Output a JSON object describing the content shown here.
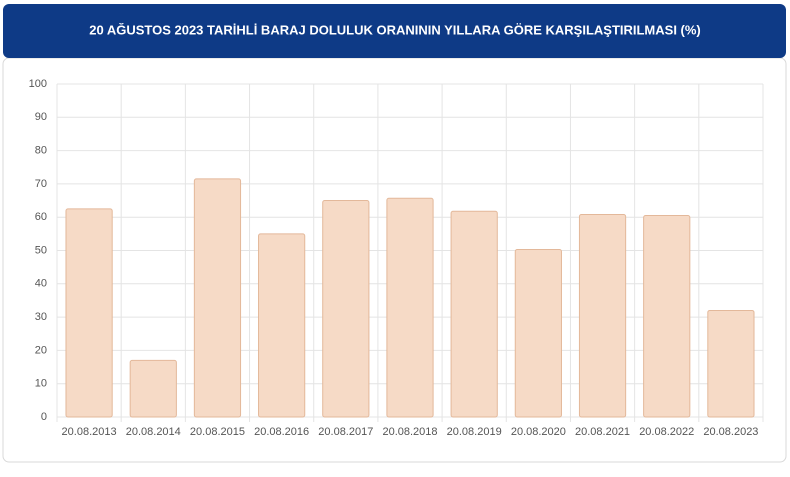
{
  "chart_data": {
    "type": "bar",
    "title": "20 AĞUSTOS 2023 TARİHLİ BARAJ DOLULUK ORANININ YILLARA GÖRE KARŞILAŞTIRILMASI (%)",
    "categories": [
      "20.08.2013",
      "20.08.2014",
      "20.08.2015",
      "20.08.2016",
      "20.08.2017",
      "20.08.2018",
      "20.08.2019",
      "20.08.2020",
      "20.08.2021",
      "20.08.2022",
      "20.08.2023"
    ],
    "values": [
      62.5,
      17,
      71.5,
      55,
      65,
      65.7,
      61.8,
      50.3,
      60.8,
      60.5,
      32
    ],
    "color": "#f6dac6",
    "ylim": [
      0,
      100
    ],
    "yticks": [
      0,
      10,
      20,
      30,
      40,
      50,
      60,
      70,
      80,
      90,
      100
    ],
    "grid": true
  }
}
